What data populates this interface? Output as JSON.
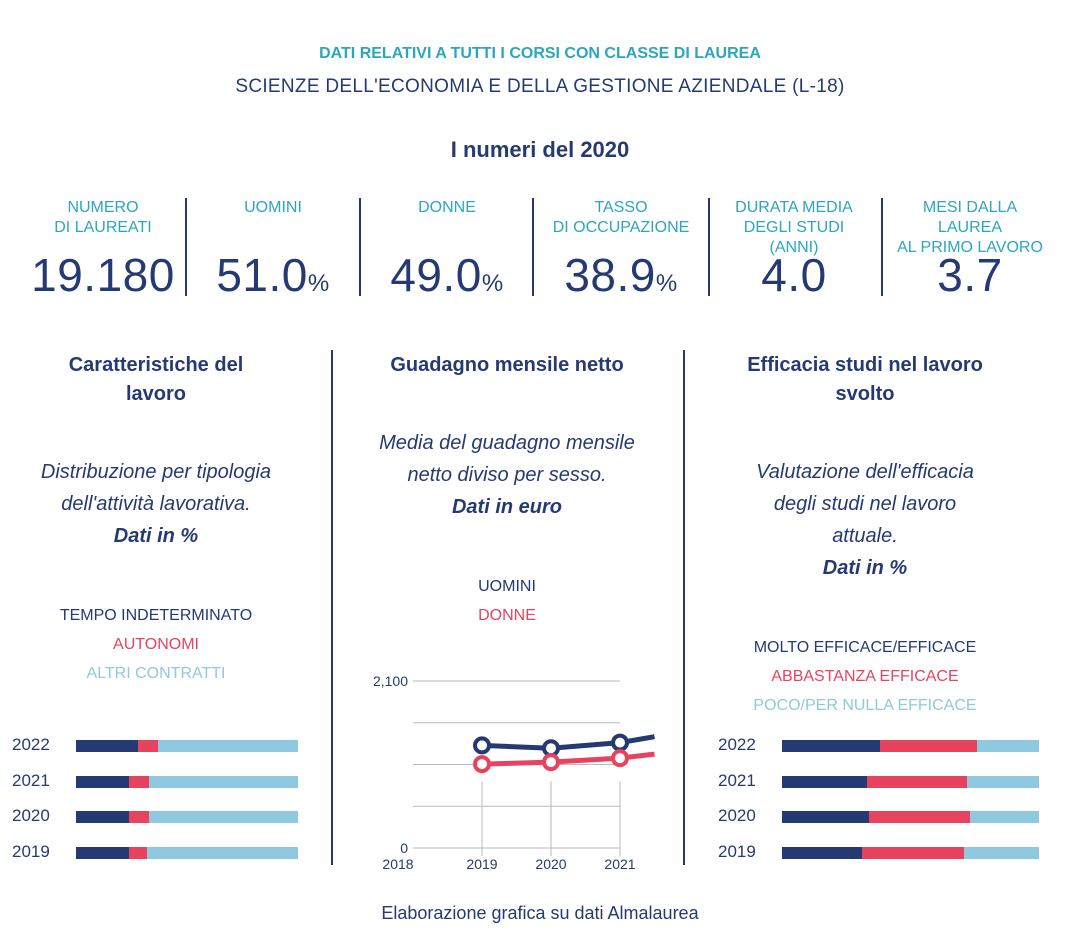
{
  "header": {
    "line1": "DATI RELATIVI A TUTTI I CORSI CON CLASSE DI LAUREA",
    "line2": "SCIENZE DELL'ECONOMIA E DELLA GESTIONE AZIENDALE (L-18)",
    "year_title": "I numeri del 2020"
  },
  "stats": [
    {
      "label1": "NUMERO",
      "label2": "DI LAUREATI",
      "label3": "",
      "value": "19.180",
      "unit": ""
    },
    {
      "label1": "UOMINI",
      "label2": "",
      "label3": "",
      "value": "51.0",
      "unit": "%"
    },
    {
      "label1": "DONNE",
      "label2": "",
      "label3": "",
      "value": "49.0",
      "unit": "%"
    },
    {
      "label1": "TASSO",
      "label2": "DI OCCUPAZIONE",
      "label3": "",
      "value": "38.9",
      "unit": "%"
    },
    {
      "label1": "DURATA MEDIA",
      "label2": "DEGLI STUDI",
      "label3": "(ANNI)",
      "value": "4.0",
      "unit": ""
    },
    {
      "label1": "MESI DALLA",
      "label2": "LAUREA",
      "label3": "AL PRIMO LAVORO",
      "value": "3.7",
      "unit": ""
    }
  ],
  "colors": {
    "navy": "#253a73",
    "red": "#e8435e",
    "light_blue": "#8ec9e0",
    "teal": "#2ba6bf"
  },
  "left_section": {
    "title_l1": "Caratteristiche del",
    "title_l2": "lavoro",
    "desc_l1": "Distribuzione per tipologia",
    "desc_l2": "dell'attività lavorativa.",
    "desc_bold": "Dati in %",
    "legend": [
      "TEMPO INDETERMINATO",
      "AUTONOMI",
      "ALTRI CONTRATTI"
    ]
  },
  "middle_section": {
    "title": "Guadagno mensile netto",
    "desc_l1": "Media del guadagno mensile",
    "desc_l2": "netto diviso per sesso.",
    "desc_bold": "Dati in euro",
    "legend": [
      "UOMINI",
      "DONNE"
    ]
  },
  "right_section": {
    "title_l1": "Efficacia studi nel lavoro",
    "title_l2": "svolto",
    "desc_l1": "Valutazione dell'efficacia",
    "desc_l2": "degli studi nel lavoro",
    "desc_l3": "attuale.",
    "desc_bold": "Dati in %",
    "legend": [
      "MOLTO EFFICACE/EFFICACE",
      "ABBASTANZA EFFICACE",
      "POCO/PER NULLA EFFICACE"
    ]
  },
  "chart_data": [
    {
      "type": "bar",
      "orientation": "horizontal",
      "stacked": true,
      "categories": [
        "2022",
        "2021",
        "2020",
        "2019"
      ],
      "series": [
        {
          "name": "TEMPO INDETERMINATO",
          "color": "#253a73",
          "values": [
            28,
            24,
            24,
            24
          ]
        },
        {
          "name": "AUTONOMI",
          "color": "#e8435e",
          "values": [
            9,
            9,
            9,
            8
          ]
        },
        {
          "name": "ALTRI CONTRATTI",
          "color": "#8ec9e0",
          "values": [
            63,
            67,
            67,
            68
          ]
        }
      ],
      "xlim": [
        0,
        100
      ]
    },
    {
      "type": "line",
      "x": [
        2018,
        2019,
        2020,
        2021
      ],
      "x_ticks": [
        "2018",
        "2019",
        "2020",
        "2021"
      ],
      "y_ticks": [
        "0",
        "2,100"
      ],
      "ylim": [
        0,
        2100
      ],
      "grid": true,
      "series": [
        {
          "name": "UOMINI",
          "color": "#253a73",
          "points": [
            [
              2019,
              1290
            ],
            [
              2020,
              1255
            ],
            [
              2021,
              1325
            ],
            [
              2021.5,
              1400
            ]
          ]
        },
        {
          "name": "DONNE",
          "color": "#e8435e",
          "points": [
            [
              2019,
              1055
            ],
            [
              2020,
              1080
            ],
            [
              2021,
              1130
            ],
            [
              2021.5,
              1180
            ]
          ]
        }
      ]
    },
    {
      "type": "bar",
      "orientation": "horizontal",
      "stacked": true,
      "categories": [
        "2022",
        "2021",
        "2020",
        "2019"
      ],
      "series": [
        {
          "name": "MOLTO EFFICACE/EFFICACE",
          "color": "#253a73",
          "values": [
            38,
            33,
            34,
            31
          ]
        },
        {
          "name": "ABBASTANZA EFFICACE",
          "color": "#e8435e",
          "values": [
            38,
            39,
            39,
            40
          ]
        },
        {
          "name": "POCO/PER NULLA EFFICACE",
          "color": "#8ec9e0",
          "values": [
            24,
            28,
            27,
            29
          ]
        }
      ],
      "xlim": [
        0,
        100
      ]
    }
  ],
  "footer": "Elaborazione grafica su dati Almalaurea"
}
